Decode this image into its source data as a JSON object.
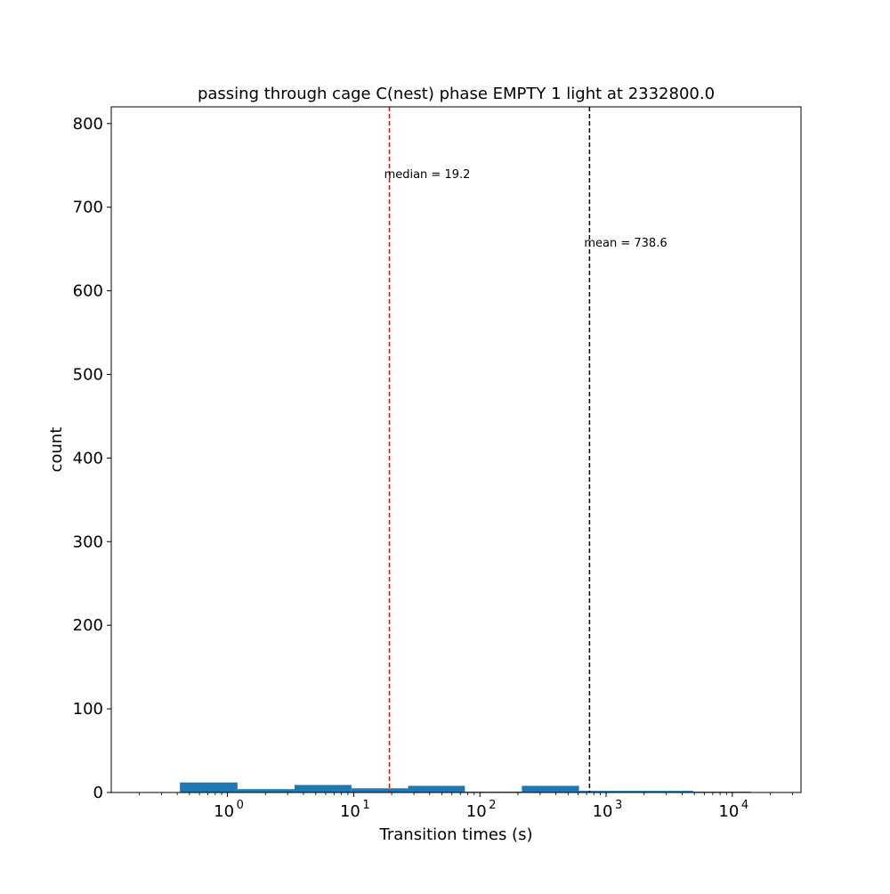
{
  "chart_data": {
    "type": "bar",
    "title": "passing through cage C(nest) phase EMPTY 1 light at 2332800.0",
    "xlabel": "Transition times (s)",
    "ylabel": "count",
    "xscale": "log",
    "xlim": [
      0.12,
      35000
    ],
    "ylim": [
      0,
      820
    ],
    "grid": false,
    "bar_color": "#1f77b4",
    "yticks": [
      0,
      100,
      200,
      300,
      400,
      500,
      600,
      700,
      800
    ],
    "ytick_labels": [
      "0",
      "100",
      "200",
      "300",
      "400",
      "500",
      "600",
      "700",
      "800"
    ],
    "xticks": [
      {
        "value": 1,
        "base": "10",
        "exp": "0"
      },
      {
        "value": 10,
        "base": "10",
        "exp": "1"
      },
      {
        "value": 100,
        "base": "10",
        "exp": "2"
      },
      {
        "value": 1000,
        "base": "10",
        "exp": "3"
      },
      {
        "value": 10000,
        "base": "10",
        "exp": "4"
      }
    ],
    "bins": [
      {
        "x0": 0.42,
        "x1": 1.2,
        "count": 12
      },
      {
        "x0": 1.2,
        "x1": 3.4,
        "count": 4
      },
      {
        "x0": 3.4,
        "x1": 9.6,
        "count": 9
      },
      {
        "x0": 9.6,
        "x1": 27,
        "count": 5
      },
      {
        "x0": 27,
        "x1": 76,
        "count": 8
      },
      {
        "x0": 76,
        "x1": 215,
        "count": 1
      },
      {
        "x0": 215,
        "x1": 610,
        "count": 8
      },
      {
        "x0": 610,
        "x1": 1720,
        "count": 2
      },
      {
        "x0": 1720,
        "x1": 4900,
        "count": 2
      },
      {
        "x0": 4900,
        "x1": 14000,
        "count": 1
      }
    ],
    "lines": [
      {
        "name": "median",
        "x": 19.2,
        "color": "#ff0000",
        "label": "median = 19.2",
        "label_y": 740
      },
      {
        "name": "mean",
        "x": 738.6,
        "color": "#000000",
        "label": "mean = 738.6",
        "label_y": 658
      }
    ]
  }
}
